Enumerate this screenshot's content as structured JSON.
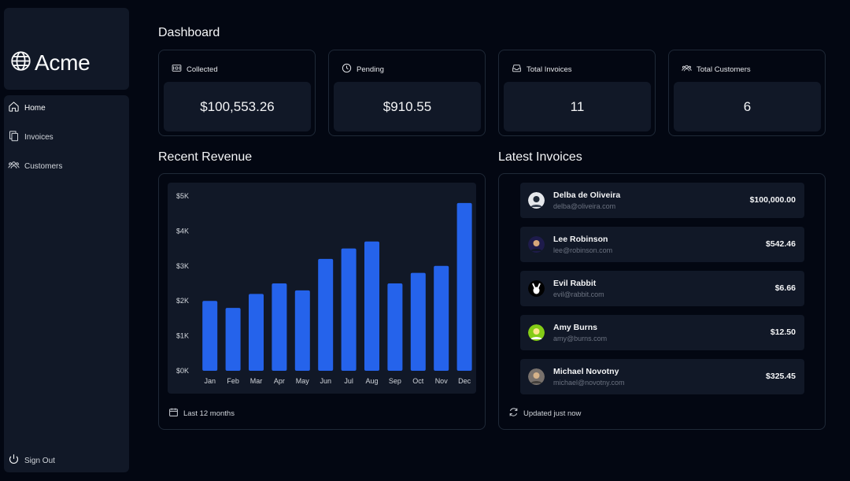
{
  "brand": {
    "name": "Acme",
    "icon": "globe-icon"
  },
  "nav": {
    "items": [
      {
        "label": "Home",
        "icon": "home-icon"
      },
      {
        "label": "Invoices",
        "icon": "document-duplicate-icon"
      },
      {
        "label": "Customers",
        "icon": "user-group-icon"
      }
    ],
    "sign_out": "Sign Out"
  },
  "page_title": "Dashboard",
  "cards": [
    {
      "label": "Collected",
      "value": "$100,553.26",
      "icon": "banknotes-icon"
    },
    {
      "label": "Pending",
      "value": "$910.55",
      "icon": "clock-icon"
    },
    {
      "label": "Total Invoices",
      "value": "11",
      "icon": "inbox-icon"
    },
    {
      "label": "Total Customers",
      "value": "6",
      "icon": "user-group-icon"
    }
  ],
  "revenue": {
    "title": "Recent Revenue",
    "footer": "Last 12 months",
    "bar_color": "#2563eb"
  },
  "chart_data": {
    "type": "bar",
    "categories": [
      "Jan",
      "Feb",
      "Mar",
      "Apr",
      "May",
      "Jun",
      "Jul",
      "Aug",
      "Sep",
      "Oct",
      "Nov",
      "Dec"
    ],
    "values": [
      2000,
      1800,
      2200,
      2500,
      2300,
      3200,
      3500,
      3700,
      2500,
      2800,
      3000,
      4800
    ],
    "y_ticks": [
      "$0K",
      "$1K",
      "$2K",
      "$3K",
      "$4K",
      "$5K"
    ],
    "ylim": [
      0,
      5000
    ],
    "title": "",
    "xlabel": "",
    "ylabel": ""
  },
  "invoices": {
    "title": "Latest Invoices",
    "footer": "Updated just now",
    "rows": [
      {
        "name": "Delba de Oliveira",
        "email": "delba@oliveira.com",
        "amount": "$100,000.00",
        "avatar_color": "#d1d5db"
      },
      {
        "name": "Lee Robinson",
        "email": "lee@robinson.com",
        "amount": "$542.46",
        "avatar_color": "#1e1b4b"
      },
      {
        "name": "Evil Rabbit",
        "email": "evil@rabbit.com",
        "amount": "$6.66",
        "avatar_color": "#000000"
      },
      {
        "name": "Amy Burns",
        "email": "amy@burns.com",
        "amount": "$12.50",
        "avatar_color": "#84cc16"
      },
      {
        "name": "Michael Novotny",
        "email": "michael@novotny.com",
        "amount": "$325.45",
        "avatar_color": "#78716c"
      }
    ]
  }
}
